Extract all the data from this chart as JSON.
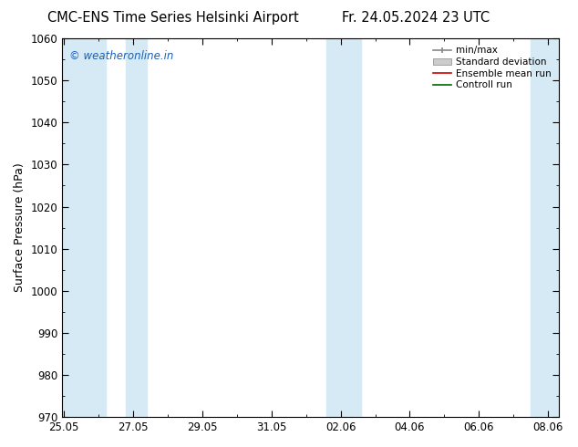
{
  "title_left": "CMC-ENS Time Series Helsinki Airport",
  "title_right": "Fr. 24.05.2024 23 UTC",
  "ylabel": "Surface Pressure (hPa)",
  "ylim": [
    970,
    1060
  ],
  "yticks": [
    970,
    980,
    990,
    1000,
    1010,
    1020,
    1030,
    1040,
    1050,
    1060
  ],
  "x_tick_labels": [
    "25.05",
    "27.05",
    "29.05",
    "31.05",
    "02.06",
    "04.06",
    "06.06",
    "08.06"
  ],
  "x_tick_positions": [
    0,
    2,
    4,
    6,
    8,
    10,
    12,
    14
  ],
  "xlim": [
    -0.05,
    14.3
  ],
  "shaded_bands": [
    {
      "x_start": -0.05,
      "x_end": 1.2,
      "color": "#d6eaf5"
    },
    {
      "x_start": 1.8,
      "x_end": 2.4,
      "color": "#d6eaf5"
    },
    {
      "x_start": 7.6,
      "x_end": 8.6,
      "color": "#d6eaf5"
    },
    {
      "x_start": 13.5,
      "x_end": 14.3,
      "color": "#d6eaf5"
    }
  ],
  "watermark": "© weatheronline.in",
  "watermark_color": "#1a5fb4",
  "bg_color": "#ffffff",
  "plot_bg_color": "#ffffff",
  "title_fontsize": 10.5,
  "ylabel_fontsize": 9,
  "tick_fontsize": 8.5,
  "legend_fontsize": 7.5
}
